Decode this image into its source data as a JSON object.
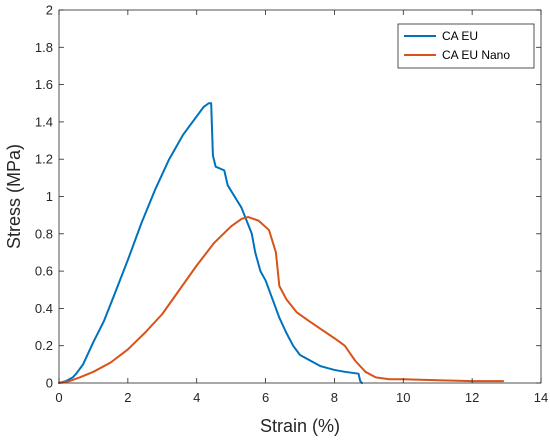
{
  "chart_data": {
    "type": "line",
    "title": "",
    "xlabel": "Strain (%)",
    "ylabel": "Stress (MPa)",
    "xlim": [
      0,
      14
    ],
    "ylim": [
      0,
      2
    ],
    "xticks": [
      0,
      2,
      4,
      6,
      8,
      10,
      12,
      14
    ],
    "yticks": [
      0,
      0.2,
      0.4,
      0.6,
      0.8,
      1,
      1.2,
      1.4,
      1.6,
      1.8,
      2
    ],
    "xtick_labels": [
      "0",
      "2",
      "4",
      "6",
      "8",
      "10",
      "12",
      "14"
    ],
    "ytick_labels": [
      "0",
      "0.2",
      "0.4",
      "0.6",
      "0.8",
      "1",
      "1.2",
      "1.4",
      "1.6",
      "1.8",
      "2"
    ],
    "grid": false,
    "box": true,
    "legend_position": "top-right",
    "series": [
      {
        "name": "CA EU",
        "color": "#0072BD",
        "points": [
          [
            0,
            0
          ],
          [
            0.2,
            0.01
          ],
          [
            0.4,
            0.03
          ],
          [
            0.5,
            0.05
          ],
          [
            0.7,
            0.1
          ],
          [
            1.0,
            0.22
          ],
          [
            1.3,
            0.33
          ],
          [
            1.6,
            0.47
          ],
          [
            2.0,
            0.66
          ],
          [
            2.4,
            0.86
          ],
          [
            2.8,
            1.04
          ],
          [
            3.2,
            1.2
          ],
          [
            3.6,
            1.33
          ],
          [
            4.0,
            1.43
          ],
          [
            4.2,
            1.48
          ],
          [
            4.35,
            1.5
          ],
          [
            4.42,
            1.5
          ],
          [
            4.47,
            1.22
          ],
          [
            4.55,
            1.16
          ],
          [
            4.8,
            1.14
          ],
          [
            4.9,
            1.06
          ],
          [
            5.1,
            1.0
          ],
          [
            5.3,
            0.94
          ],
          [
            5.45,
            0.87
          ],
          [
            5.6,
            0.8
          ],
          [
            5.7,
            0.7
          ],
          [
            5.85,
            0.6
          ],
          [
            6.0,
            0.55
          ],
          [
            6.2,
            0.45
          ],
          [
            6.4,
            0.35
          ],
          [
            6.6,
            0.27
          ],
          [
            6.8,
            0.2
          ],
          [
            7.0,
            0.15
          ],
          [
            7.3,
            0.12
          ],
          [
            7.6,
            0.09
          ],
          [
            8.0,
            0.07
          ],
          [
            8.3,
            0.06
          ],
          [
            8.7,
            0.05
          ],
          [
            8.75,
            0.01
          ],
          [
            8.8,
            0.0
          ]
        ]
      },
      {
        "name": "CA EU Nano",
        "color": "#D95319",
        "points": [
          [
            0,
            0
          ],
          [
            0.3,
            0.01
          ],
          [
            0.6,
            0.03
          ],
          [
            1.0,
            0.06
          ],
          [
            1.5,
            0.11
          ],
          [
            2.0,
            0.18
          ],
          [
            2.5,
            0.27
          ],
          [
            3.0,
            0.37
          ],
          [
            3.5,
            0.5
          ],
          [
            4.0,
            0.63
          ],
          [
            4.5,
            0.75
          ],
          [
            5.0,
            0.84
          ],
          [
            5.3,
            0.88
          ],
          [
            5.5,
            0.89
          ],
          [
            5.8,
            0.87
          ],
          [
            6.1,
            0.82
          ],
          [
            6.3,
            0.7
          ],
          [
            6.4,
            0.52
          ],
          [
            6.6,
            0.45
          ],
          [
            6.9,
            0.38
          ],
          [
            7.2,
            0.34
          ],
          [
            7.6,
            0.29
          ],
          [
            8.0,
            0.24
          ],
          [
            8.3,
            0.2
          ],
          [
            8.6,
            0.12
          ],
          [
            8.9,
            0.06
          ],
          [
            9.2,
            0.03
          ],
          [
            9.6,
            0.02
          ],
          [
            10.0,
            0.02
          ],
          [
            11.0,
            0.015
          ],
          [
            12.0,
            0.01
          ],
          [
            12.9,
            0.01
          ]
        ]
      }
    ]
  }
}
